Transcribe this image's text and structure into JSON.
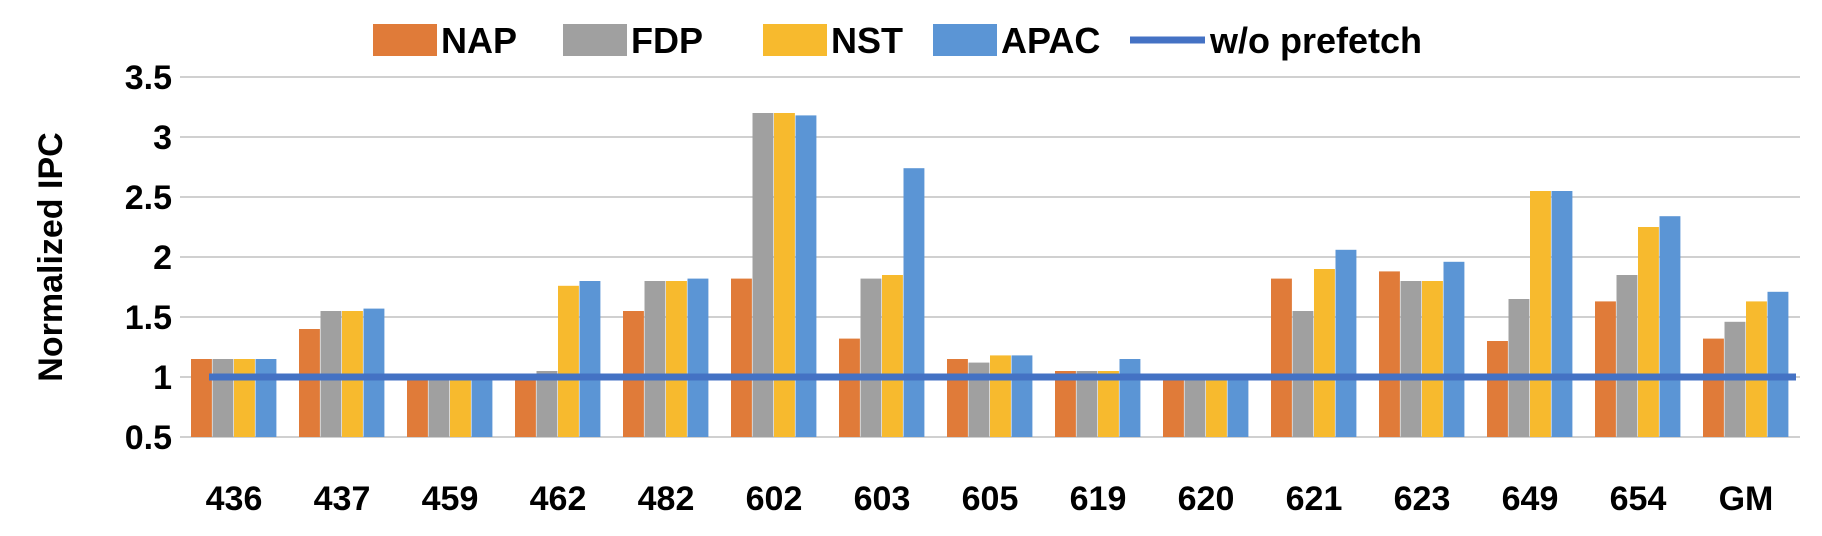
{
  "chart_data": {
    "type": "bar",
    "title": "",
    "xlabel": "",
    "ylabel": "Normalized IPC",
    "ylim": [
      0.5,
      3.5
    ],
    "yticks": [
      0.5,
      1,
      1.5,
      2,
      2.5,
      3,
      3.5
    ],
    "ytick_labels": [
      "0.5",
      "1",
      "1.5",
      "2",
      "2.5",
      "3",
      "3.5"
    ],
    "grid": true,
    "legend_position": "top",
    "categories": [
      "436",
      "437",
      "459",
      "462",
      "482",
      "602",
      "603",
      "605",
      "619",
      "620",
      "621",
      "623",
      "649",
      "654",
      "GM"
    ],
    "series": [
      {
        "name": "NAP",
        "color": "#E07B39",
        "values": [
          1.15,
          1.4,
          1.0,
          1.0,
          1.55,
          1.82,
          1.32,
          1.15,
          1.05,
          1.0,
          1.82,
          1.88,
          1.3,
          1.63,
          1.32
        ]
      },
      {
        "name": "FDP",
        "color": "#A0A0A0",
        "values": [
          1.15,
          1.55,
          1.0,
          1.05,
          1.8,
          3.2,
          1.82,
          1.12,
          1.05,
          1.0,
          1.55,
          1.8,
          1.65,
          1.85,
          1.46
        ]
      },
      {
        "name": "NST",
        "color": "#F7BA2E",
        "values": [
          1.15,
          1.55,
          1.0,
          1.76,
          1.8,
          3.2,
          1.85,
          1.18,
          1.05,
          1.0,
          1.9,
          1.8,
          2.55,
          2.25,
          1.63
        ]
      },
      {
        "name": "APAC",
        "color": "#5B95D5",
        "values": [
          1.15,
          1.57,
          1.0,
          1.8,
          1.82,
          3.18,
          2.74,
          1.18,
          1.15,
          1.0,
          2.06,
          1.96,
          2.55,
          2.34,
          1.71
        ]
      }
    ],
    "reference_line": {
      "name": "w/o prefetch",
      "value": 1.0,
      "color": "#4472C4"
    }
  }
}
